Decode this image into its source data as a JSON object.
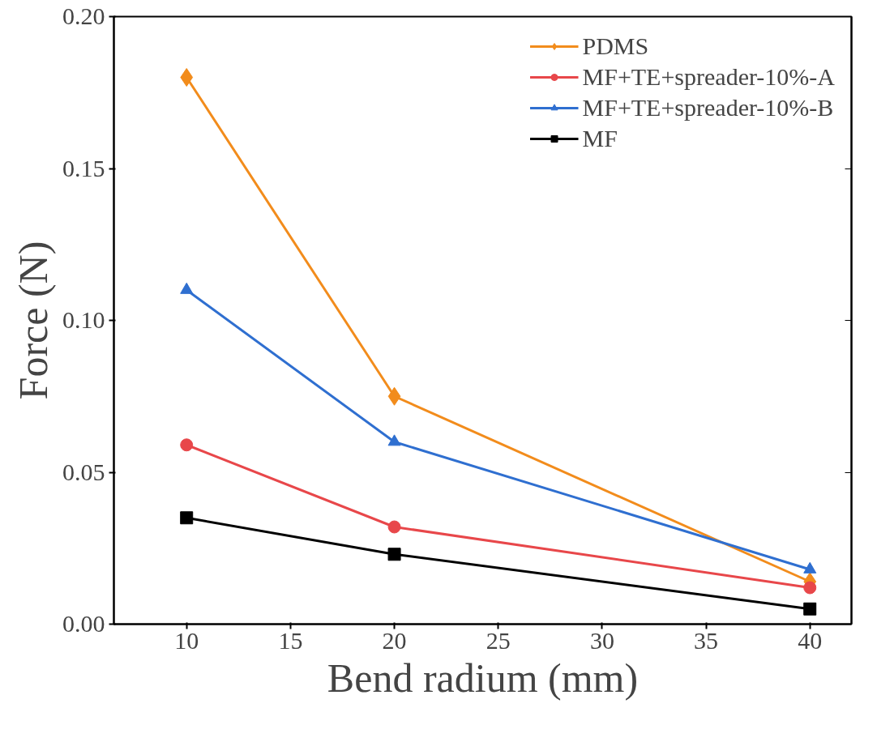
{
  "chart_data": {
    "type": "line",
    "xlabel": "Bend radium (mm)",
    "ylabel": "Force (N)",
    "x": [
      10,
      20,
      40
    ],
    "series": [
      {
        "name": "PDMS",
        "color": "#f28c1c",
        "marker": "diamond",
        "values": [
          0.18,
          0.075,
          0.014
        ]
      },
      {
        "name": "MF+TE+spreader-10%-A",
        "color": "#e8474a",
        "marker": "circle",
        "values": [
          0.059,
          0.032,
          0.012
        ]
      },
      {
        "name": "MF+TE+spreader-10%-B",
        "color": "#2f6fd0",
        "marker": "triangle",
        "values": [
          0.11,
          0.06,
          0.018
        ]
      },
      {
        "name": "MF",
        "color": "#000000",
        "marker": "square",
        "values": [
          0.035,
          0.023,
          0.005
        ]
      }
    ],
    "xlim": [
      6.5,
      42
    ],
    "xticks": [
      10,
      15,
      20,
      25,
      30,
      35,
      40
    ],
    "ylim": [
      0,
      0.2
    ],
    "yticks": [
      {
        "value": 0,
        "label": "0.00"
      },
      {
        "value": 0.05,
        "label": "0.05"
      },
      {
        "value": 0.1,
        "label": "0.10"
      },
      {
        "value": 0.15,
        "label": "0.15"
      },
      {
        "value": 0.2,
        "label": "0.20"
      }
    ],
    "grid": false,
    "legend": "top right",
    "line_style": "solid"
  }
}
